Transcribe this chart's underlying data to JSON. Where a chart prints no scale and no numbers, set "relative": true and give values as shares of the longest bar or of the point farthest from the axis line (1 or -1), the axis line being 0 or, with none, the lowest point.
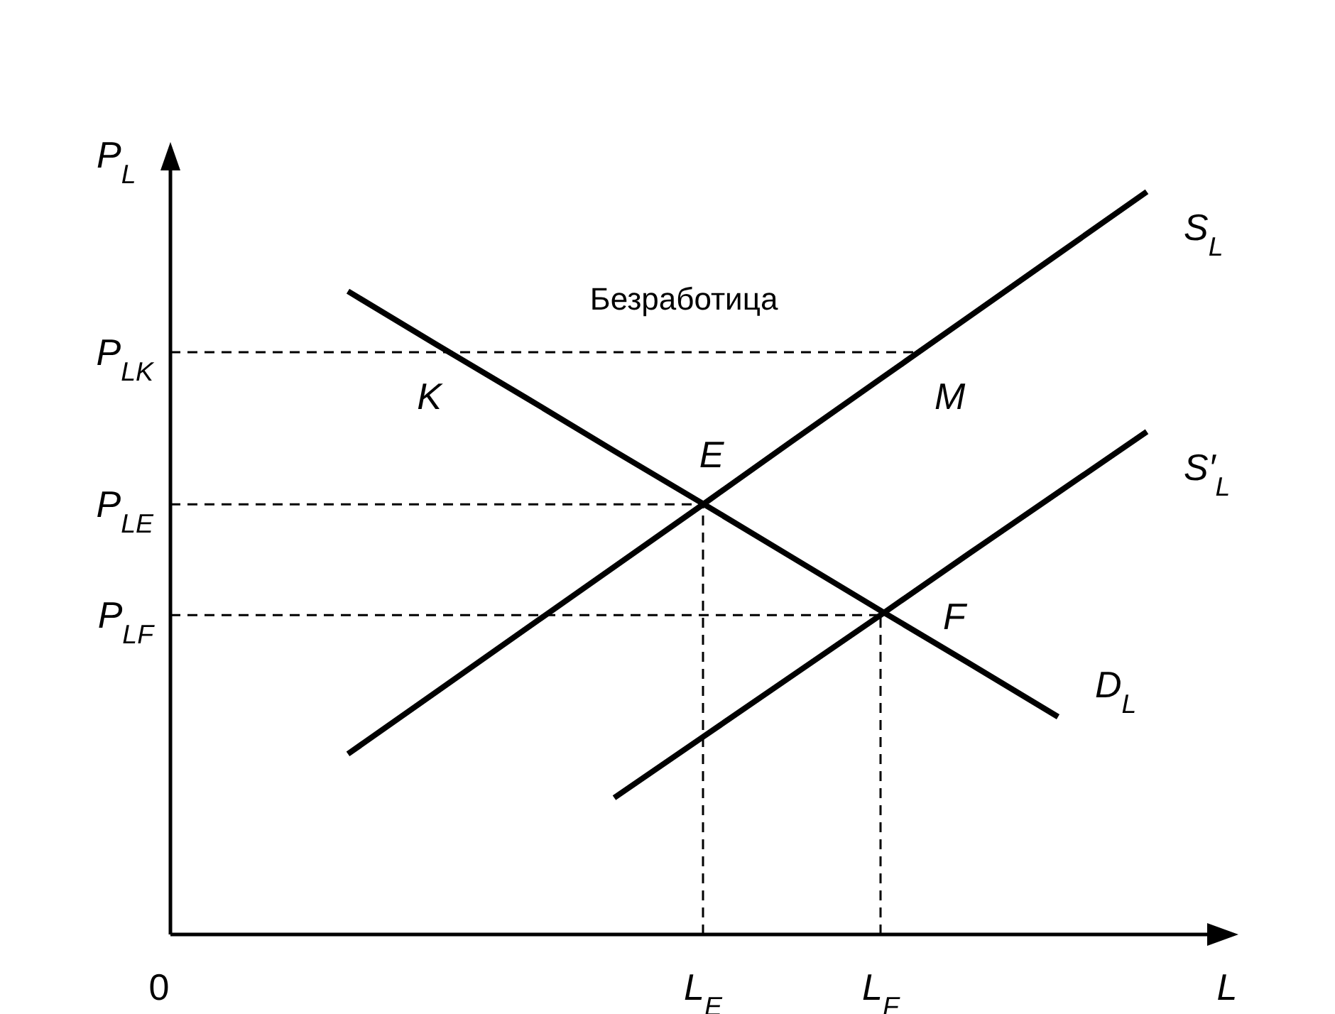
{
  "chart_data": {
    "type": "line",
    "relative": true,
    "xlabel": "L",
    "ylabel": "P$_{L}$",
    "legend": false,
    "marker": "none",
    "line_style": "solid",
    "categories": [
      "0",
      null,
      null,
      null,
      null,
      null,
      "L$_{E}$",
      null,
      "L$_{F}$",
      null,
      null,
      null,
      null
    ],
    "series": [
      {
        "name": "S$_{L}$",
        "color": "#000000",
        "values": [
          null,
          null,
          0.243,
          0.327,
          0.411,
          0.495,
          0.579,
          0.664,
          0.748,
          0.832,
          0.916,
          1,
          null
        ]
      },
      {
        "name": "D$_{L}$",
        "color": "#000000",
        "values": [
          null,
          null,
          0.866,
          0.794,
          0.723,
          0.651,
          0.58,
          0.508,
          0.436,
          0.365,
          0.293,
          null,
          null
        ]
      },
      {
        "name": "S′$_{L}$",
        "color": "#000000",
        "values": [
          null,
          null,
          null,
          null,
          null,
          0.184,
          0.266,
          0.348,
          0.43,
          0.513,
          0.595,
          0.677,
          null
        ]
      }
    ],
    "ref_lines": [
      {
        "axis": "y",
        "value": 0.784,
        "label": "P$_{LK}$",
        "line_style": "dashed"
      },
      {
        "axis": "y",
        "value": 0.579,
        "label": "P$_{LE}$",
        "line_style": "dashed"
      },
      {
        "axis": "y",
        "value": 0.43,
        "label": "P$_{LF}$",
        "line_style": "dashed"
      },
      {
        "axis": "x",
        "value": "L$_{E}$",
        "line_style": "dashed"
      },
      {
        "axis": "x",
        "value": "L$_{F}$",
        "line_style": "dashed"
      }
    ],
    "annotations": [
      "Безработица",
      {
        "text": "K",
        "y": 0.784
      },
      "M",
      {
        "text": "E",
        "x": "L$_{E}$",
        "y": 0.579
      },
      {
        "text": "F",
        "x": "L$_{F}$",
        "y": 0.43
      }
    ]
  }
}
